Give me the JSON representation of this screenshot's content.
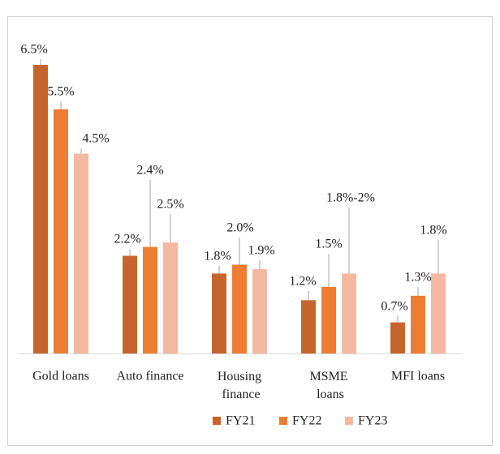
{
  "chart_data": {
    "type": "bar",
    "categories": [
      "Gold loans",
      "Auto finance",
      "Housing finance",
      "MSME loans",
      "MFI loans"
    ],
    "series": [
      {
        "name": "FY21",
        "color": "#c5652d",
        "values": [
          6.5,
          2.2,
          1.8,
          1.2,
          0.7
        ],
        "value_labels": [
          "6.5%",
          "2.2%",
          "1.8%",
          "1.2%",
          "0.7%"
        ]
      },
      {
        "name": "FY22",
        "color": "#ed7d31",
        "values": [
          5.5,
          2.4,
          2.0,
          1.5,
          1.3
        ],
        "value_labels": [
          "5.5%",
          "2.4%",
          "2.0%",
          "1.5%",
          "1.3%"
        ]
      },
      {
        "name": "FY23",
        "color": "#f4b8a0",
        "values": [
          4.5,
          2.5,
          1.9,
          1.8,
          1.8
        ],
        "value_labels": [
          "4.5%",
          "2.5%",
          "1.9%",
          "1.8%-2%",
          "1.8%"
        ]
      }
    ],
    "legend": "bottom"
  }
}
